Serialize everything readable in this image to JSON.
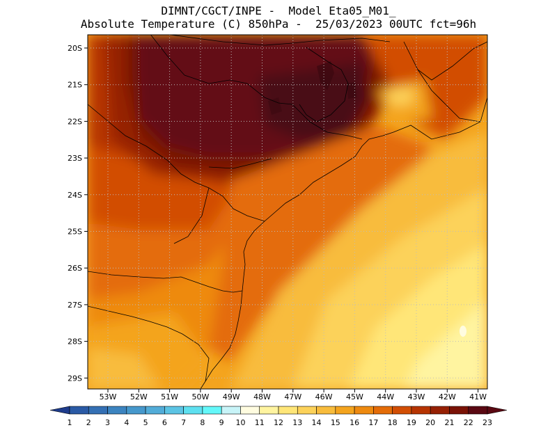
{
  "header": {
    "title_line1": "DIMNT/CGCT/INPE -  Model Eta05_M01_",
    "title_line2": "Absolute Temperature (C) 850hPa -  25/03/2023 00UTC fct=96h"
  },
  "map": {
    "latitudes": [
      "20S",
      "21S",
      "22S",
      "23S",
      "24S",
      "25S",
      "26S",
      "27S",
      "28S",
      "29S"
    ],
    "longitudes": [
      "53W",
      "52W",
      "51W",
      "50W",
      "49W",
      "48W",
      "47W",
      "46W",
      "45W",
      "44W",
      "43W",
      "42W",
      "41W"
    ]
  },
  "colorbar": {
    "labels": [
      "1",
      "2",
      "3",
      "4",
      "5",
      "6",
      "7",
      "8",
      "9",
      "10",
      "11",
      "12",
      "13",
      "14",
      "15",
      "16",
      "17",
      "18",
      "19",
      "20",
      "21",
      "22",
      "23"
    ],
    "colors": [
      "#1e3c8c",
      "#2a5aa5",
      "#3470b4",
      "#3c84c0",
      "#4698cc",
      "#52acd8",
      "#5cc4e4",
      "#5ee0f0",
      "#64f8fa",
      "#c8f4f8",
      "#fffce0",
      "#fff4a0",
      "#ffe678",
      "#fcd25a",
      "#f8bc3c",
      "#f4a41e",
      "#ee8a10",
      "#e46c08",
      "#d24e04",
      "#b63402",
      "#962004",
      "#7a1206",
      "#5a0812"
    ]
  }
}
